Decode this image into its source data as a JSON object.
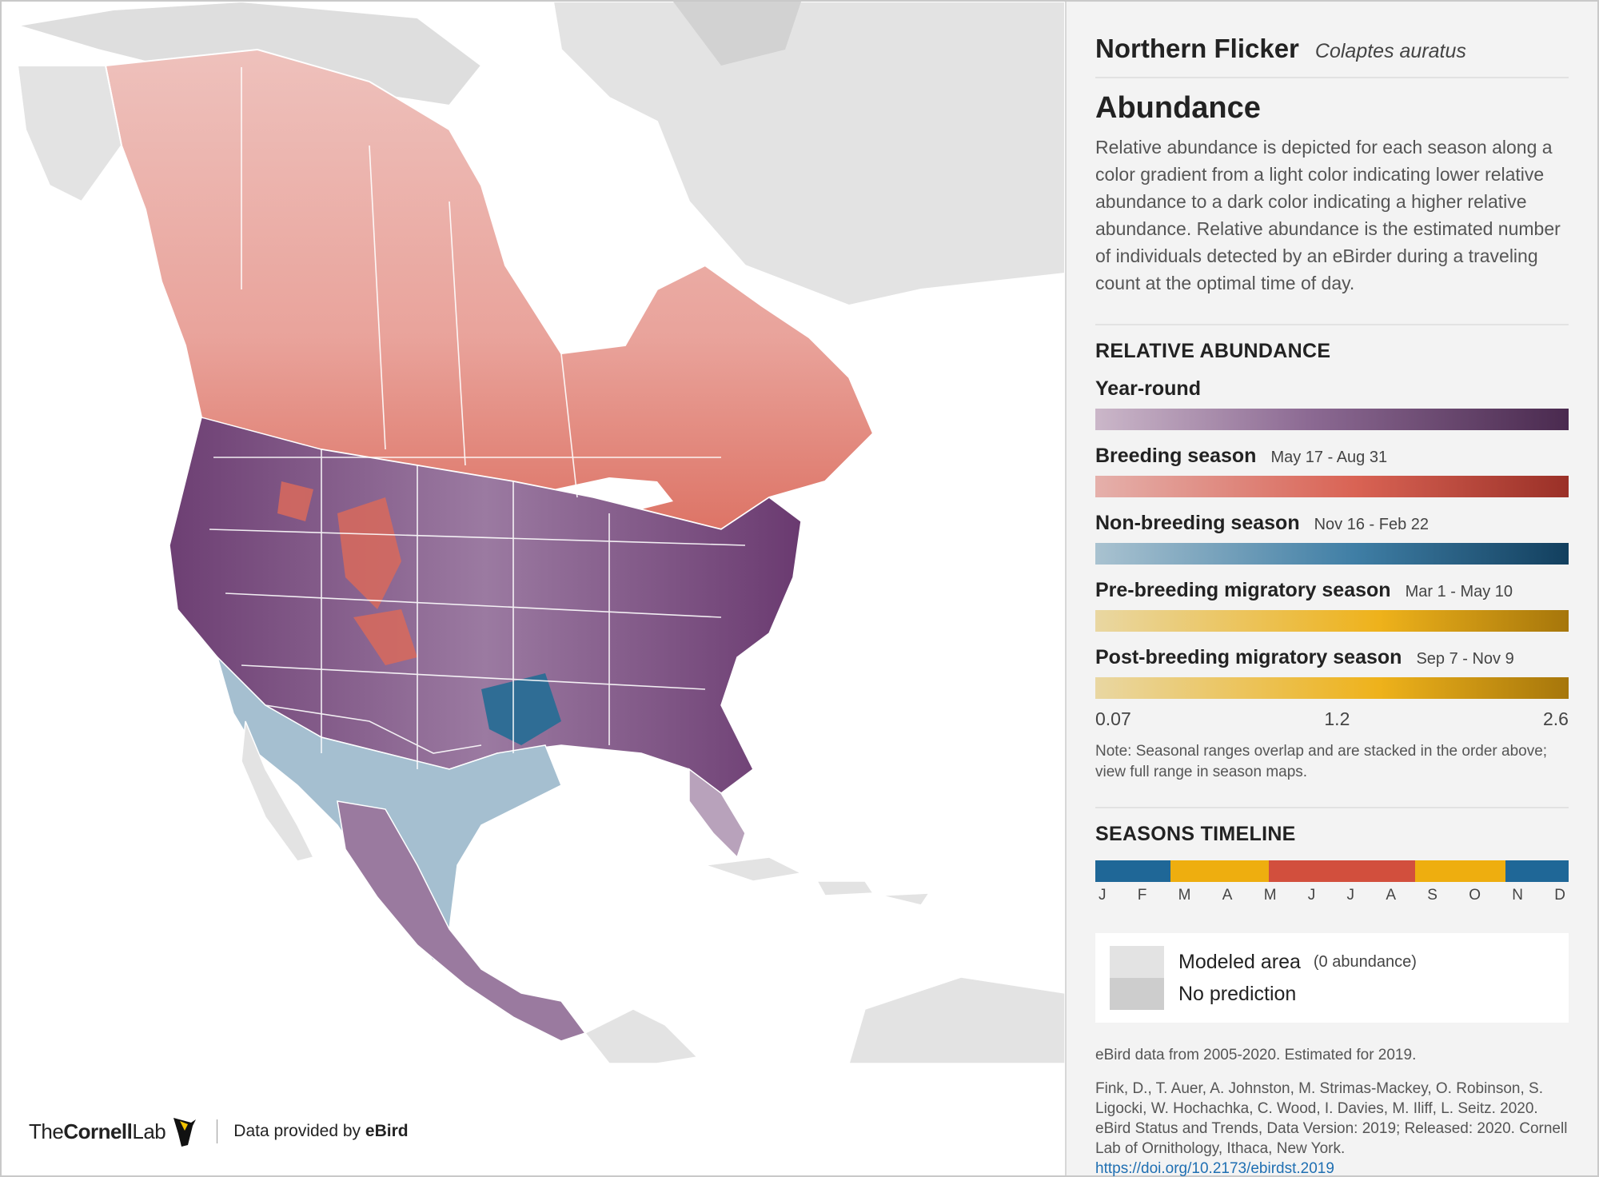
{
  "header": {
    "species": "Northern Flicker",
    "scientific": "Colaptes auratus"
  },
  "section": {
    "title": "Abundance",
    "description": "Relative abundance is depicted for each season along a color gradient from a light color indicating lower relative abundance to a dark color indicating a higher relative abundance. Relative abundance is the estimated number of individuals detected by an eBirder during a traveling count at the optimal time of day."
  },
  "legend": {
    "heading": "RELATIVE ABUNDANCE",
    "seasons": [
      {
        "name": "Year-round",
        "dates": "",
        "colors": [
          "#cbb7c9",
          "#4a2a4f"
        ]
      },
      {
        "name": "Breeding season",
        "dates": "May 17 - Aug 31",
        "colors": [
          "#e5b0ab",
          "#9a3027"
        ]
      },
      {
        "name": "Non-breeding season",
        "dates": "Nov 16 - Feb 22",
        "colors": [
          "#a9c2d0",
          "#123f5e"
        ]
      },
      {
        "name": "Pre-breeding migratory season",
        "dates": "Mar 1 - May 10",
        "colors": [
          "#e9d7a2",
          "#a6760b"
        ]
      },
      {
        "name": "Post-breeding migratory season",
        "dates": "Sep 7 - Nov 9",
        "colors": [
          "#e9d7a2",
          "#a6760b"
        ]
      }
    ],
    "scale": {
      "min": "0.07",
      "mid": "1.2",
      "max": "2.6"
    },
    "note": "Note: Seasonal ranges overlap and are stacked in the order above; view full range in season maps."
  },
  "timeline": {
    "heading": "SEASONS TIMELINE",
    "segments": [
      {
        "season": "non-breeding",
        "color": "#1f6797",
        "start_month": 0,
        "end_month": 1.9
      },
      {
        "season": "pre-breeding",
        "color": "#eeae0f",
        "start_month": 1.9,
        "end_month": 4.4
      },
      {
        "season": "breeding",
        "color": "#d24f3d",
        "start_month": 4.4,
        "end_month": 8.1
      },
      {
        "season": "post-breeding",
        "color": "#eeae0f",
        "start_month": 8.1,
        "end_month": 10.4
      },
      {
        "season": "non-breeding",
        "color": "#1f6797",
        "start_month": 10.4,
        "end_month": 12
      }
    ],
    "months": [
      "J",
      "F",
      "M",
      "A",
      "M",
      "J",
      "J",
      "A",
      "S",
      "O",
      "N",
      "D"
    ]
  },
  "map_legend": {
    "modeled": "Modeled area",
    "modeled_sub": "(0 abundance)",
    "no_prediction": "No prediction",
    "modeled_color": "#e3e3e3",
    "no_prediction_color": "#cdcdcd"
  },
  "source": {
    "data_years": "eBird data from 2005-2020. Estimated for 2019.",
    "citation": "Fink, D., T. Auer, A. Johnston, M. Strimas-Mackey, O. Robinson, S. Ligocki, W. Hochachka, C. Wood, I. Davies, M. Iliff, L. Seitz. 2020. eBird Status and Trends, Data Version: 2019; Released: 2020. Cornell Lab of Ornithology, Ithaca, New York.",
    "doi": "https://doi.org/10.2173/ebirdst.2019"
  },
  "branding": {
    "logo_prefix": "The",
    "logo_bold": "Cornell",
    "logo_suffix": "Lab",
    "data_prefix": "Data provided by",
    "data_bold": "eBird"
  }
}
